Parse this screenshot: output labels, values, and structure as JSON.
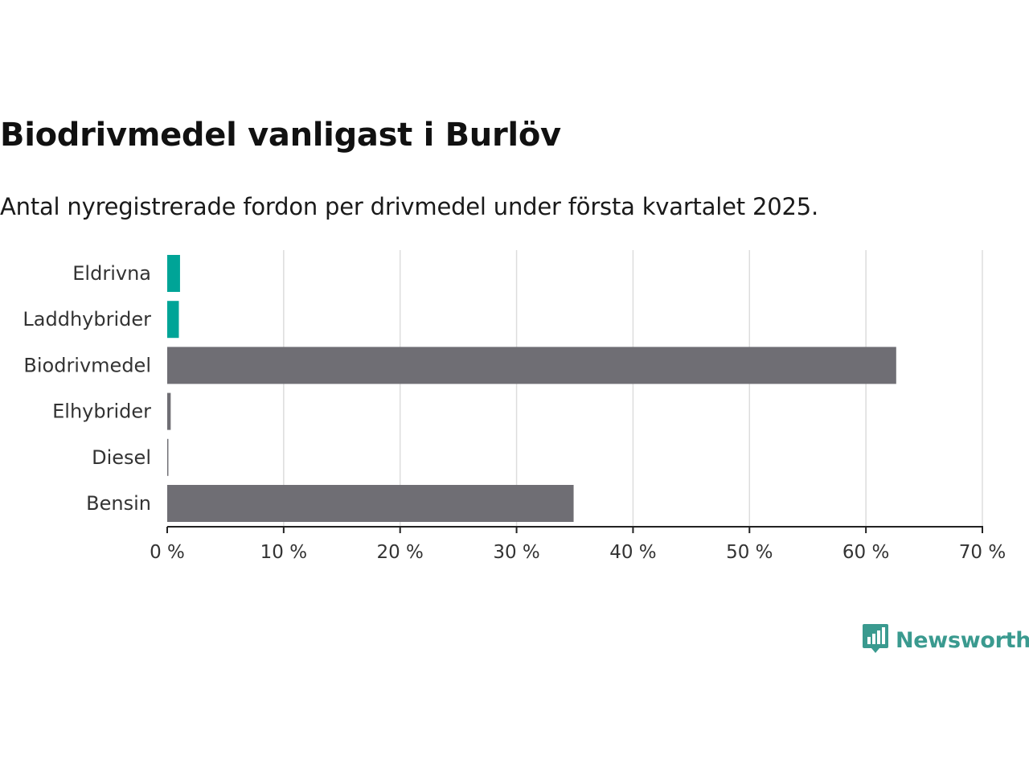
{
  "chart_data": {
    "type": "bar",
    "orientation": "horizontal",
    "title": "Biodrivmedel vanligast i Burlöv",
    "subtitle": "Antal nyregistrerade fordon per drivmedel under första kvartalet 2025.",
    "categories": [
      "Eldrivna",
      "Laddhybrider",
      "Biodrivmedel",
      "Elhybrider",
      "Diesel",
      "Bensin"
    ],
    "values": [
      1.1,
      1.0,
      62.6,
      0.3,
      0.1,
      34.9
    ],
    "bar_colors": [
      "#00a497",
      "#00a497",
      "#6f6e74",
      "#6f6e74",
      "#6f6e74",
      "#6f6e74"
    ],
    "xlim": [
      0,
      70
    ],
    "x_ticks": [
      0,
      10,
      20,
      30,
      40,
      50,
      60,
      70
    ],
    "x_tick_labels": [
      "0 %",
      "10 %",
      "20 %",
      "30 %",
      "40 %",
      "50 %",
      "60 %",
      "70 %"
    ],
    "xlabel": "",
    "ylabel": "",
    "grid": "vertical",
    "legend": "none"
  },
  "brand": {
    "name": "Newsworthy",
    "icon": "bar-chart-speech-bubble-icon",
    "color": "#3a9a8f"
  }
}
